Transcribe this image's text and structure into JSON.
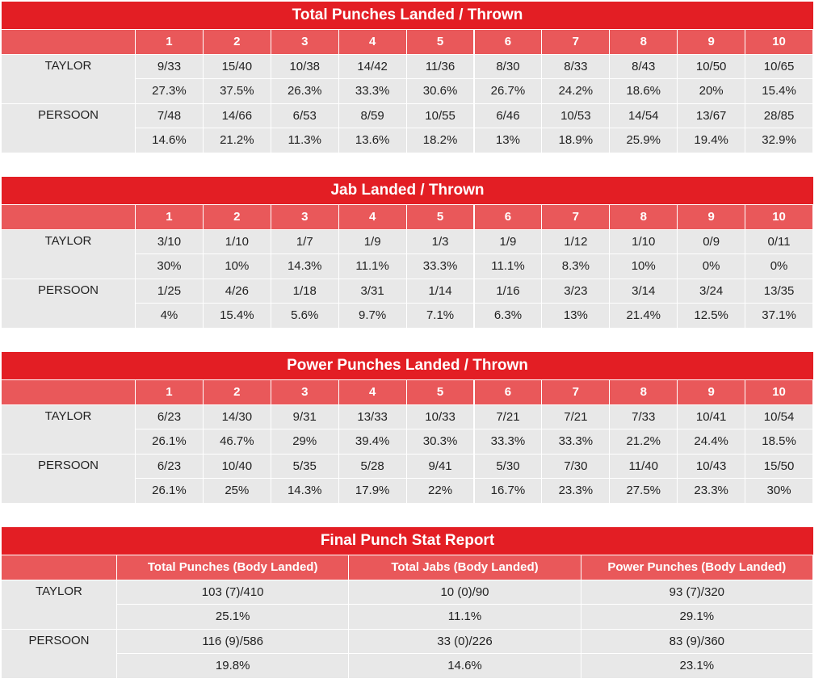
{
  "tables": [
    {
      "title": "Total Punches Landed / Thrown",
      "columns": [
        1,
        2,
        3,
        4,
        5,
        6,
        7,
        8,
        9,
        10
      ],
      "rows": [
        {
          "name": "TAYLOR",
          "counts": [
            "9/33",
            "15/40",
            "10/38",
            "14/42",
            "11/36",
            "8/30",
            "8/33",
            "8/43",
            "10/50",
            "10/65"
          ],
          "percents": [
            "27.3%",
            "37.5%",
            "26.3%",
            "33.3%",
            "30.6%",
            "26.7%",
            "24.2%",
            "18.6%",
            "20%",
            "15.4%"
          ]
        },
        {
          "name": "PERSOON",
          "counts": [
            "7/48",
            "14/66",
            "6/53",
            "8/59",
            "10/55",
            "6/46",
            "10/53",
            "14/54",
            "13/67",
            "28/85"
          ],
          "percents": [
            "14.6%",
            "21.2%",
            "11.3%",
            "13.6%",
            "18.2%",
            "13%",
            "18.9%",
            "25.9%",
            "19.4%",
            "32.9%"
          ]
        }
      ]
    },
    {
      "title": "Jab Landed / Thrown",
      "columns": [
        1,
        2,
        3,
        4,
        5,
        6,
        7,
        8,
        9,
        10
      ],
      "rows": [
        {
          "name": "TAYLOR",
          "counts": [
            "3/10",
            "1/10",
            "1/7",
            "1/9",
            "1/3",
            "1/9",
            "1/12",
            "1/10",
            "0/9",
            "0/11"
          ],
          "percents": [
            "30%",
            "10%",
            "14.3%",
            "11.1%",
            "33.3%",
            "11.1%",
            "8.3%",
            "10%",
            "0%",
            "0%"
          ]
        },
        {
          "name": "PERSOON",
          "counts": [
            "1/25",
            "4/26",
            "1/18",
            "3/31",
            "1/14",
            "1/16",
            "3/23",
            "3/14",
            "3/24",
            "13/35"
          ],
          "percents": [
            "4%",
            "15.4%",
            "5.6%",
            "9.7%",
            "7.1%",
            "6.3%",
            "13%",
            "21.4%",
            "12.5%",
            "37.1%"
          ]
        }
      ]
    },
    {
      "title": "Power Punches Landed / Thrown",
      "columns": [
        1,
        2,
        3,
        4,
        5,
        6,
        7,
        8,
        9,
        10
      ],
      "rows": [
        {
          "name": "TAYLOR",
          "counts": [
            "6/23",
            "14/30",
            "9/31",
            "13/33",
            "10/33",
            "7/21",
            "7/21",
            "7/33",
            "10/41",
            "10/54"
          ],
          "percents": [
            "26.1%",
            "46.7%",
            "29%",
            "39.4%",
            "30.3%",
            "33.3%",
            "33.3%",
            "21.2%",
            "24.4%",
            "18.5%"
          ]
        },
        {
          "name": "PERSOON",
          "counts": [
            "6/23",
            "10/40",
            "5/35",
            "5/28",
            "9/41",
            "5/30",
            "7/30",
            "11/40",
            "10/43",
            "15/50"
          ],
          "percents": [
            "26.1%",
            "25%",
            "14.3%",
            "17.9%",
            "22%",
            "16.7%",
            "23.3%",
            "27.5%",
            "23.3%",
            "30%"
          ]
        }
      ]
    },
    {
      "title": "Final Punch Stat Report",
      "columns": [
        "Total Punches (Body Landed)",
        "Total Jabs (Body Landed)",
        "Power Punches (Body Landed)"
      ],
      "rows": [
        {
          "name": "TAYLOR",
          "counts": [
            "103 (7)/410",
            "10 (0)/90",
            "93 (7)/320"
          ],
          "percents": [
            "25.1%",
            "11.1%",
            "29.1%"
          ]
        },
        {
          "name": "PERSOON",
          "counts": [
            "116 (9)/586",
            "33 (0)/226",
            "83 (9)/360"
          ],
          "percents": [
            "19.8%",
            "14.6%",
            "23.1%"
          ]
        }
      ]
    }
  ]
}
